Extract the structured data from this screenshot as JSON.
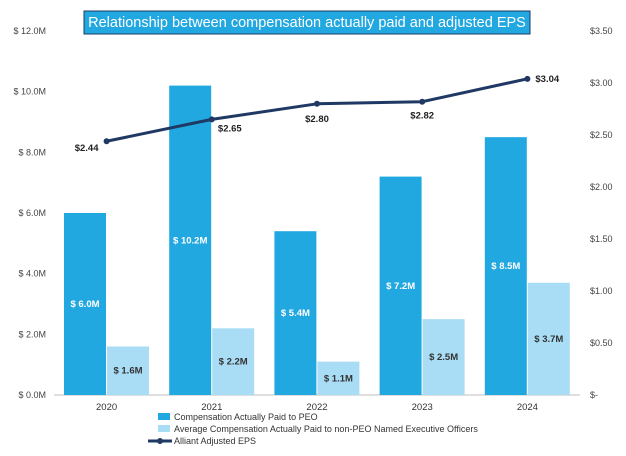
{
  "chart_data": {
    "type": "bar+line",
    "title": "Relationship between compensation actually paid and adjusted EPS",
    "categories": [
      "2020",
      "2021",
      "2022",
      "2023",
      "2024"
    ],
    "series": [
      {
        "name": "Compensation Actually Paid to PEO",
        "kind": "bar",
        "axis": "left",
        "color": "#22a8e0",
        "values": [
          6.0,
          10.2,
          5.4,
          7.2,
          8.5
        ],
        "labels": [
          "$ 6.0M",
          "$ 10.2M",
          "$ 5.4M",
          "$ 7.2M",
          "$ 8.5M"
        ]
      },
      {
        "name": "Average Compensation Actually Paid to non-PEO Named Executive Officers",
        "kind": "bar",
        "axis": "left",
        "color": "#a9dcf5",
        "values": [
          1.6,
          2.2,
          1.1,
          2.5,
          3.7
        ],
        "labels": [
          "$ 1.6M",
          "$ 2.2M",
          "$ 1.1M",
          "$ 2.5M",
          "$ 3.7M"
        ]
      },
      {
        "name": "Alliant Adjusted EPS",
        "kind": "line",
        "axis": "right",
        "color": "#1f3864",
        "values": [
          2.44,
          2.65,
          2.8,
          2.82,
          3.04
        ],
        "labels": [
          "$2.44",
          "$2.65",
          "$2.80",
          "$2.82",
          "$3.04"
        ]
      }
    ],
    "y_left": {
      "range": [
        0,
        12
      ],
      "ticks": [
        0,
        2,
        4,
        6,
        8,
        10,
        12
      ],
      "tick_labels": [
        "$ 0.0M",
        "$ 2.0M",
        "$ 4.0M",
        "$ 6.0M",
        "$ 8.0M",
        "$ 10.0M",
        "$ 12.0M"
      ]
    },
    "y_right": {
      "range": [
        0,
        3.5
      ],
      "ticks": [
        0,
        0.5,
        1.0,
        1.5,
        2.0,
        2.5,
        3.0,
        3.5
      ],
      "tick_labels": [
        "$-",
        "$0.50",
        "$1.00",
        "$1.50",
        "$2.00",
        "$2.50",
        "$3.00",
        "$3.50"
      ]
    },
    "grid": false,
    "legend_position": "bottom-center",
    "title_background": "#22a8e0"
  }
}
